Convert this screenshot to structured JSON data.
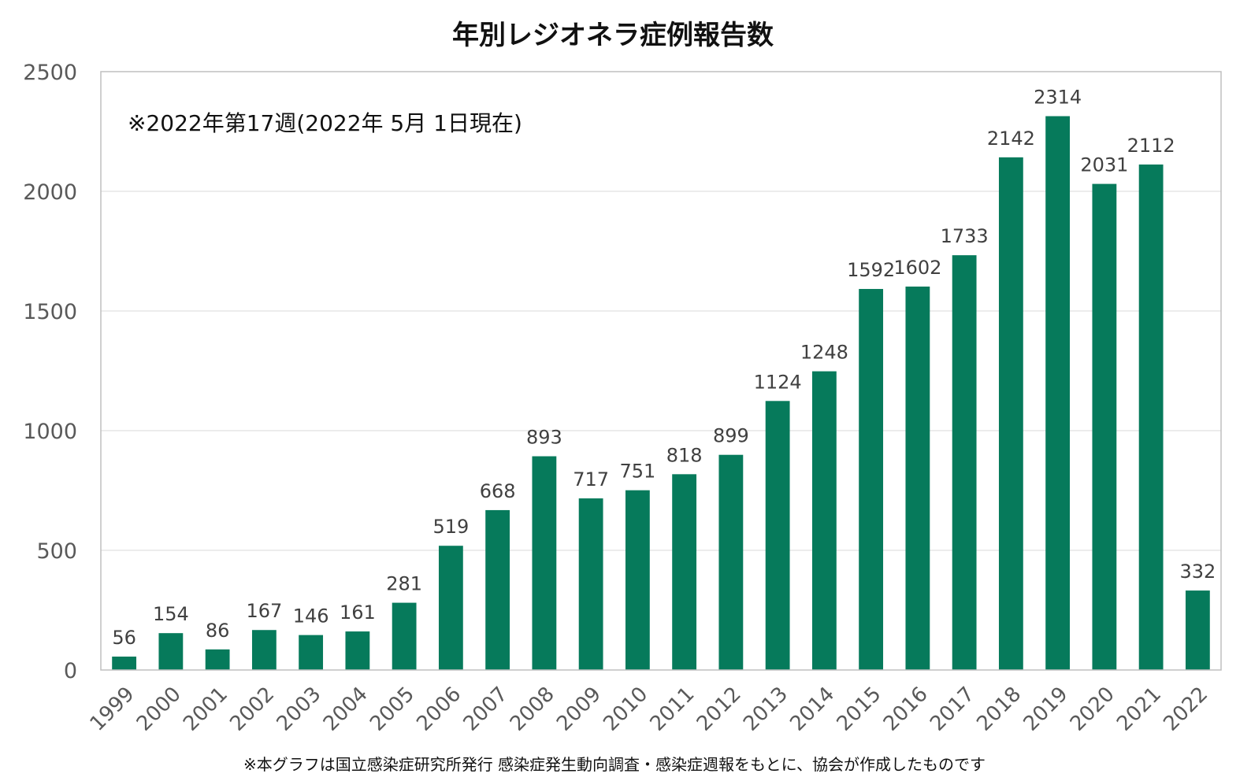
{
  "chart_data": {
    "type": "bar",
    "title": "年別レジオネラ症例報告数",
    "annotation": "※2022年第17週(2022年 5月 1日現在)",
    "source_note": "※本グラフは国立感染症研究所発行 感染症発生動向調査・感染症週報をもとに、協会が作成したものです",
    "xlabel": "",
    "ylabel": "",
    "ylim": [
      0,
      2500
    ],
    "yticks": [
      0,
      500,
      1000,
      1500,
      2000,
      2500
    ],
    "grid": true,
    "legend": "none",
    "bar_color": "#067A5B",
    "categories": [
      "1999",
      "2000",
      "2001",
      "2002",
      "2003",
      "2004",
      "2005",
      "2006",
      "2007",
      "2008",
      "2009",
      "2010",
      "2011",
      "2012",
      "2013",
      "2014",
      "2015",
      "2016",
      "2017",
      "2018",
      "2019",
      "2020",
      "2021",
      "2022"
    ],
    "values": [
      56,
      154,
      86,
      167,
      146,
      161,
      281,
      519,
      668,
      893,
      717,
      751,
      818,
      899,
      1124,
      1248,
      1592,
      1602,
      1733,
      2142,
      2314,
      2031,
      2112,
      332
    ]
  }
}
